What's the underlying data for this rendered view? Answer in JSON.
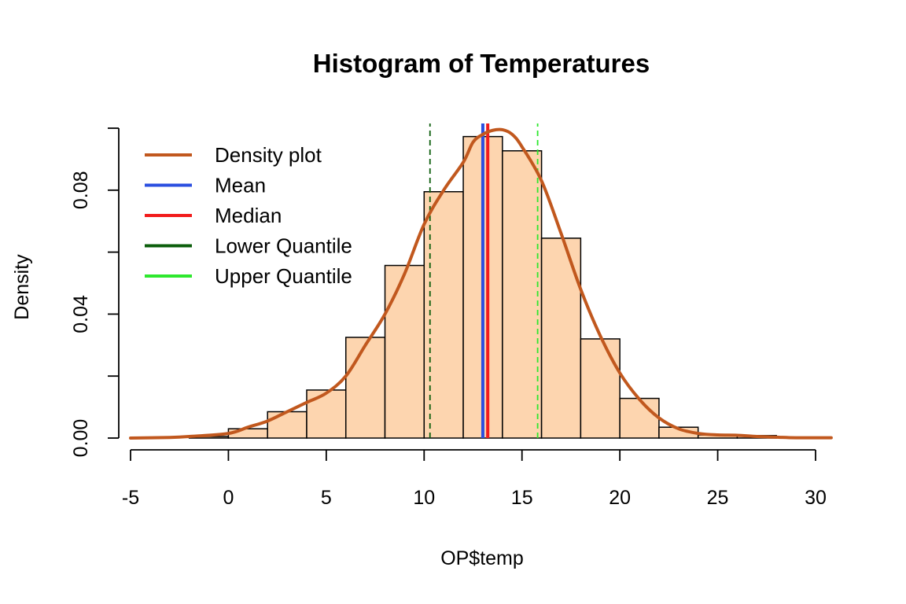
{
  "chart_data": {
    "type": "histogram",
    "title": "Histogram of Temperatures",
    "xlabel": "OP$temp",
    "ylabel": "Density",
    "xlim": [
      -5,
      31
    ],
    "ylim": [
      0,
      0.1
    ],
    "x_ticks": [
      -5,
      0,
      5,
      10,
      15,
      20,
      25,
      30
    ],
    "x_tick_labels": [
      "-5",
      "0",
      "5",
      "10",
      "15",
      "20",
      "25",
      "30"
    ],
    "y_ticks": [
      0,
      0.02,
      0.04,
      0.06,
      0.08,
      0.1
    ],
    "y_tick_labels": [
      "0.00",
      "",
      "0.04",
      "",
      "0.08",
      ""
    ],
    "bar_fill": "#FDD5AF",
    "bar_stroke": "#000000",
    "bins": [
      {
        "start": -2,
        "end": 0,
        "density": 0.0005
      },
      {
        "start": 0,
        "end": 2,
        "density": 0.003
      },
      {
        "start": 2,
        "end": 4,
        "density": 0.0085
      },
      {
        "start": 4,
        "end": 6,
        "density": 0.0155
      },
      {
        "start": 6,
        "end": 8,
        "density": 0.0325
      },
      {
        "start": 8,
        "end": 10,
        "density": 0.0557
      },
      {
        "start": 10,
        "end": 12,
        "density": 0.0795
      },
      {
        "start": 12,
        "end": 14,
        "density": 0.0973
      },
      {
        "start": 14,
        "end": 16,
        "density": 0.0927
      },
      {
        "start": 16,
        "end": 18,
        "density": 0.0645
      },
      {
        "start": 18,
        "end": 20,
        "density": 0.032
      },
      {
        "start": 20,
        "end": 22,
        "density": 0.0128
      },
      {
        "start": 22,
        "end": 24,
        "density": 0.0035
      },
      {
        "start": 24,
        "end": 26,
        "density": 0.001
      },
      {
        "start": 26,
        "end": 28,
        "density": 0.0008
      }
    ],
    "density_curve": {
      "name": "Density plot",
      "color": "#C1581E",
      "x": [
        -5,
        -3,
        -2,
        0,
        1,
        2,
        3,
        4,
        5,
        6,
        7,
        8,
        9,
        10,
        11,
        12,
        12.5,
        13,
        13.5,
        14,
        14.5,
        15,
        16,
        17,
        18,
        19,
        20,
        21,
        22,
        23,
        24,
        25,
        26,
        27,
        28,
        29,
        30.8
      ],
      "y": [
        0,
        0.0002,
        0.0005,
        0.0015,
        0.0035,
        0.0055,
        0.0085,
        0.0115,
        0.0145,
        0.02,
        0.03,
        0.04,
        0.053,
        0.069,
        0.08,
        0.089,
        0.0955,
        0.098,
        0.0993,
        0.0995,
        0.098,
        0.094,
        0.083,
        0.066,
        0.048,
        0.033,
        0.021,
        0.0125,
        0.0065,
        0.003,
        0.0015,
        0.001,
        0.0009,
        0.0005,
        0.0003,
        0.0001,
        0.0001
      ]
    },
    "vertical_lines": [
      {
        "name": "Mean",
        "x": 13.0,
        "color": "#2B4FE0",
        "style": "solid"
      },
      {
        "name": "Median",
        "x": 13.25,
        "color": "#F21C1C",
        "style": "solid"
      },
      {
        "name": "Lower Quantile",
        "x": 10.3,
        "color": "#0B5E0B",
        "style": "dashed"
      },
      {
        "name": "Upper Quantile",
        "x": 15.8,
        "color": "#2EE82E",
        "style": "dashed"
      }
    ],
    "legend": {
      "placement": "top-left",
      "entries": [
        {
          "label": "Density plot",
          "color": "#C1581E"
        },
        {
          "label": "Mean",
          "color": "#2B4FE0"
        },
        {
          "label": "Median",
          "color": "#F21C1C"
        },
        {
          "label": "Lower Quantile",
          "color": "#0B5E0B"
        },
        {
          "label": "Upper Quantile",
          "color": "#2EE82E"
        }
      ]
    }
  }
}
